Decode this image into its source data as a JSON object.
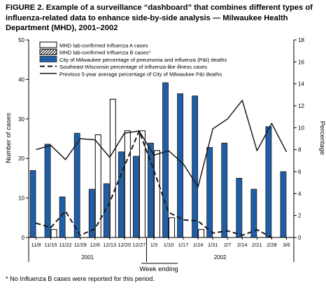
{
  "figure_title": "FIGURE 2. Example of a surveillance “dashboard” that combines different types of influenza-related data to enhance side-by-side analysis — Milwaukee Health Department (MHD), 2001–2002",
  "footnote": "* No Influenza B cases were reported for this period.",
  "chart_data": {
    "type": "bar",
    "categories": [
      "11/8",
      "11/15",
      "11/22",
      "11/29",
      "12/6",
      "12/13",
      "12/20",
      "12/27",
      "1/3",
      "1/10",
      "1/17",
      "1/24",
      "1/31",
      "2/7",
      "2/14",
      "2/21",
      "2/28",
      "3/6"
    ],
    "year_labels": [
      "2001",
      "2002"
    ],
    "xlabel": "Week ending",
    "ylabel_left": "Number of cases",
    "ylabel_right": "Percentage",
    "ylim_left": [
      0,
      50
    ],
    "yticks_left": [
      0,
      10,
      20,
      30,
      40,
      50
    ],
    "ylim_right": [
      0,
      18
    ],
    "yticks_right": [
      0,
      2,
      4,
      6,
      8,
      10,
      12,
      14,
      16,
      18
    ],
    "grid": false,
    "legend_position": "top-left",
    "series": [
      {
        "name": "MHD lab-confirmed Influenza A cases",
        "kind": "bar-outline",
        "axis": "left",
        "values": [
          0,
          2,
          0,
          0,
          26,
          35,
          27,
          27,
          22,
          5,
          0,
          2,
          0,
          0,
          0,
          0,
          0,
          0
        ]
      },
      {
        "name": "MHD lab-confirmed Influenza B cases*",
        "kind": "bar-hatched",
        "axis": "left",
        "values": [
          0,
          0,
          0,
          0,
          0,
          0,
          0,
          0,
          0,
          0,
          0,
          0,
          0,
          0,
          0,
          0,
          0,
          0
        ]
      },
      {
        "name": "City of Milwaukee percentage of pneumonia and influenza (P&I) deaths",
        "kind": "bar-solid",
        "axis": "right",
        "values": [
          6.1,
          8.5,
          3.7,
          9.5,
          4.4,
          4.9,
          7.8,
          7.4,
          8.6,
          14.1,
          13.1,
          12.9,
          8.2,
          8.6,
          5.4,
          4.4,
          10.1,
          6.0
        ]
      },
      {
        "name": "Southeast Wisconsin percentage of influenza-like illness cases",
        "kind": "line-dashed",
        "axis": "right",
        "values": [
          1.3,
          0.9,
          2.4,
          0.2,
          0.8,
          3.2,
          6.5,
          9.7,
          6.1,
          2.3,
          1.6,
          1.5,
          0.4,
          0.6,
          0.2,
          0.7,
          0.0,
          null
        ]
      },
      {
        "name": "Previous 5-year average percentage of City of Milwaukee P&I deaths",
        "kind": "line-solid",
        "axis": "right",
        "values": [
          8.0,
          8.4,
          7.1,
          9.0,
          8.9,
          7.3,
          9.5,
          9.7,
          7.5,
          7.9,
          6.7,
          4.6,
          9.9,
          10.8,
          12.5,
          7.9,
          10.4,
          7.8
        ]
      }
    ],
    "colors": {
      "solid_bar_fill": "#1f5fa8",
      "solid_bar_stroke": "#1a1a1a",
      "outline_bar_fill": "#ffffff",
      "line": "#1a1a1a"
    }
  }
}
